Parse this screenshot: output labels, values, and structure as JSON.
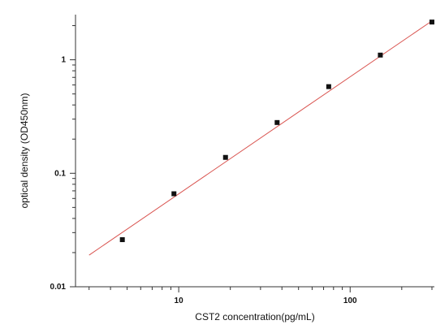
{
  "chart_data": {
    "type": "scatter",
    "title": "",
    "xlabel": "CST2  concentration(pg/mL)",
    "ylabel": "optical density (OD450nm)",
    "x_scale": "log",
    "y_scale": "log",
    "xlim": [
      2.5,
      310
    ],
    "ylim": [
      0.01,
      2.5
    ],
    "x_ticks": [
      {
        "value": 10,
        "label": "10"
      },
      {
        "value": 100,
        "label": "100"
      }
    ],
    "y_ticks": [
      {
        "value": 0.01,
        "label": "0.01"
      },
      {
        "value": 0.1,
        "label": "0.1"
      },
      {
        "value": 1,
        "label": "1"
      }
    ],
    "points": [
      {
        "x": 4.69,
        "y": 0.026
      },
      {
        "x": 9.38,
        "y": 0.066
      },
      {
        "x": 18.75,
        "y": 0.138
      },
      {
        "x": 37.5,
        "y": 0.28
      },
      {
        "x": 75,
        "y": 0.58
      },
      {
        "x": 150,
        "y": 1.1
      },
      {
        "x": 300,
        "y": 2.15
      }
    ],
    "fit_line": {
      "x": [
        3,
        300
      ],
      "y": [
        0.019,
        2.2
      ]
    },
    "grid": false,
    "legend": "none",
    "colors": {
      "points": "#111111",
      "fit": "#d9534f",
      "axis": "#333333"
    }
  }
}
